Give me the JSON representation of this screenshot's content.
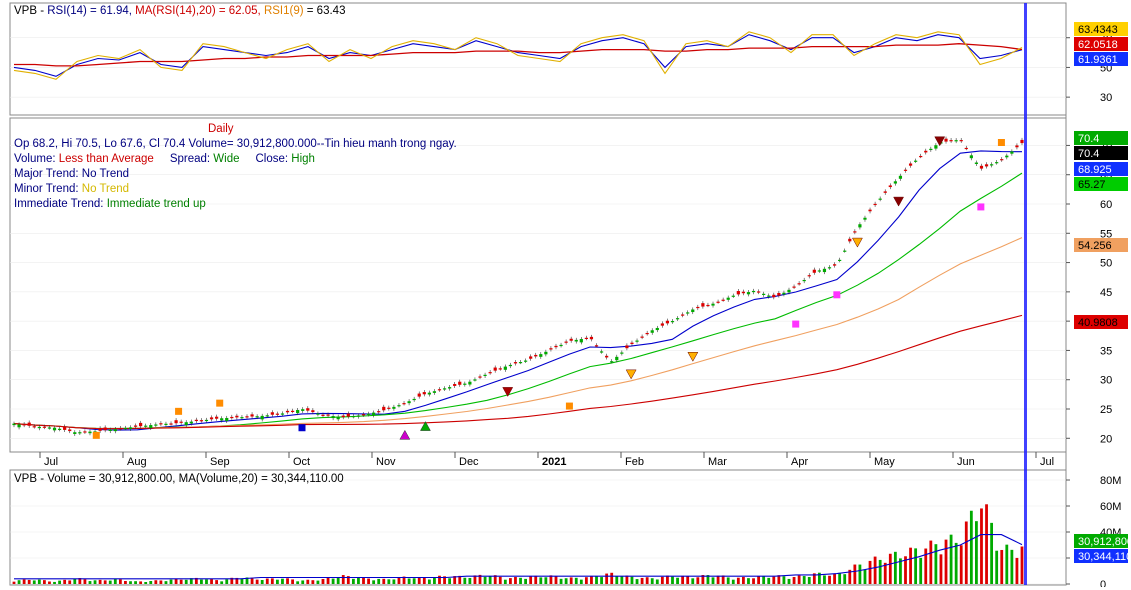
{
  "rsi_panel": {
    "prefix": "VPB - ",
    "rsi_label": "RSI(14) = 61.94,",
    "ma_label": "MA(RSI(14),20) = 62.05,",
    "rsi1_label": "RSI1(9)",
    "rsi1_value": " = 63.43",
    "axis_ticks": [
      "70",
      "50",
      "30"
    ],
    "badges": [
      "63.4343",
      "62.0518",
      "61.9361"
    ]
  },
  "price_panel": {
    "title": "Daily",
    "ohlc_line": "Op 68.2, Hi 70.5, Lo 67.6, Cl 70.4  Volume= 30,912,800.000--Tin hieu manh trong ngay.",
    "volume_label": "Volume:",
    "volume_value": "Less than Average",
    "spread_label": "Spread:",
    "spread_value": "Wide",
    "close_label": "Close:",
    "close_value": "High",
    "major_label": "Major Trend:",
    "major_value": "No Trend",
    "minor_label": "Minor Trend:",
    "minor_value": "No Trend",
    "immediate_label": "Immediate Trend:",
    "immediate_value": "Immediate trend up",
    "axis_ticks": [
      "70",
      "65",
      "60",
      "55",
      "50",
      "45",
      "40",
      "35",
      "30",
      "25",
      "20"
    ],
    "badges": [
      "70.4",
      "70.4",
      "68.925",
      "65.27",
      "54.256",
      "40.9808"
    ]
  },
  "volume_panel": {
    "label": "VPB - Volume = 30,912,800.00, MA(Volume,20) = 30,344,110.00",
    "axis_ticks": [
      "80M",
      "60M",
      "40M",
      "20M",
      "0"
    ],
    "badges": [
      "30,912,800",
      "30,344,110"
    ]
  },
  "x_axis": {
    "labels": [
      "Jul",
      "Aug",
      "Sep",
      "Oct",
      "Nov",
      "Dec",
      "2021",
      "Feb",
      "Mar",
      "Apr",
      "May",
      "Jun",
      "Jul"
    ]
  },
  "colors": {
    "rsi": "#0000cc",
    "rsi_ma": "#cc0000",
    "rsi1": "#e0b000",
    "ma_fast": "#0000cc",
    "ma_mid": "#00bb00",
    "ma_slow": "#f0a060",
    "ma_long": "#cc0000",
    "up_bar": "#00aa00",
    "down_bar": "#dd0000",
    "cursor": "#0000ff"
  },
  "chart_data": [
    {
      "type": "line",
      "series": [
        {
          "name": "RSI(14)",
          "values": [
            50,
            48,
            44,
            52,
            56,
            55,
            60,
            52,
            50,
            64,
            62,
            60,
            58,
            60,
            64,
            56,
            60,
            58,
            62,
            66,
            64,
            62,
            68,
            64,
            60,
            58,
            56,
            64,
            68,
            70,
            66,
            50,
            64,
            66,
            64,
            72,
            68,
            62,
            70,
            70,
            60,
            64,
            70,
            68,
            72,
            70,
            56,
            58,
            61.94
          ]
        },
        {
          "name": "MA(RSI(14),20)",
          "values": [
            52,
            52,
            51,
            51,
            52,
            53,
            54,
            54,
            54,
            55,
            56,
            56,
            57,
            57,
            58,
            58,
            58,
            58,
            59,
            60,
            60,
            60,
            61,
            61,
            61,
            60,
            60,
            61,
            62,
            62,
            62,
            61,
            61,
            62,
            62,
            63,
            63,
            63,
            64,
            64,
            64,
            64,
            65,
            65,
            65,
            66,
            65,
            64,
            62.05
          ]
        },
        {
          "name": "RSI1(9)",
          "values": [
            48,
            46,
            42,
            54,
            58,
            56,
            62,
            50,
            48,
            66,
            64,
            60,
            56,
            62,
            66,
            54,
            62,
            56,
            64,
            68,
            66,
            62,
            70,
            66,
            58,
            56,
            54,
            66,
            70,
            72,
            68,
            46,
            66,
            68,
            64,
            74,
            70,
            60,
            72,
            72,
            58,
            66,
            72,
            70,
            74,
            72,
            52,
            56,
            63.43
          ]
        }
      ],
      "ylim": [
        20,
        90
      ]
    },
    {
      "type": "bar",
      "title": "Daily",
      "x_labels": [
        "Jul",
        "Aug",
        "Sep",
        "Oct",
        "Nov",
        "Dec",
        "2021",
        "Feb",
        "Mar",
        "Apr",
        "May",
        "Jun",
        "Jul"
      ],
      "close": [
        22.5,
        22.0,
        21.8,
        21.0,
        21.2,
        21.6,
        22.0,
        22.4,
        22.6,
        23.0,
        23.4,
        23.6,
        23.8,
        24.2,
        25.0,
        24.0,
        23.6,
        24.0,
        24.8,
        26.0,
        27.6,
        28.6,
        29.4,
        31.0,
        32.4,
        33.4,
        35.0,
        36.6,
        37.2,
        33.0,
        36.0,
        38.4,
        40.0,
        42.0,
        43.0,
        44.4,
        45.2,
        44.0,
        46.0,
        48.5,
        49.6,
        56.0,
        60.5,
        64.5,
        68.0,
        70.5,
        71.0,
        66.0,
        67.5,
        70.4
      ],
      "ylim": [
        18,
        74
      ],
      "moving_averages": [
        {
          "name": "MA fast",
          "last": 68.925
        },
        {
          "name": "MA mid",
          "last": 65.27
        },
        {
          "name": "MA slow",
          "last": 54.256
        },
        {
          "name": "MA long",
          "last": 40.9808
        }
      ]
    },
    {
      "type": "bar",
      "series": [
        {
          "name": "Volume",
          "values": [
            3,
            4,
            2,
            5,
            3,
            4,
            2,
            3,
            4,
            5,
            3,
            6,
            4,
            5,
            3,
            4,
            7,
            5,
            4,
            6,
            5,
            7,
            6,
            8,
            5,
            6,
            7,
            5,
            6,
            9,
            6,
            5,
            7,
            6,
            8,
            5,
            6,
            7,
            6,
            9,
            8,
            16,
            22,
            26,
            30,
            36,
            40,
            74,
            30,
            31
          ]
        },
        {
          "name": "MA(Volume,20)",
          "values": [
            4,
            4,
            4,
            4,
            4,
            4,
            4,
            4,
            4,
            4,
            4,
            4,
            5,
            5,
            5,
            5,
            5,
            5,
            5,
            5,
            5,
            5,
            6,
            6,
            6,
            6,
            6,
            6,
            6,
            6,
            6,
            6,
            6,
            6,
            6,
            6,
            6,
            6,
            7,
            7,
            8,
            10,
            13,
            17,
            21,
            26,
            30,
            38,
            38,
            30.3
          ]
        }
      ],
      "ylim": [
        0,
        80
      ]
    }
  ]
}
